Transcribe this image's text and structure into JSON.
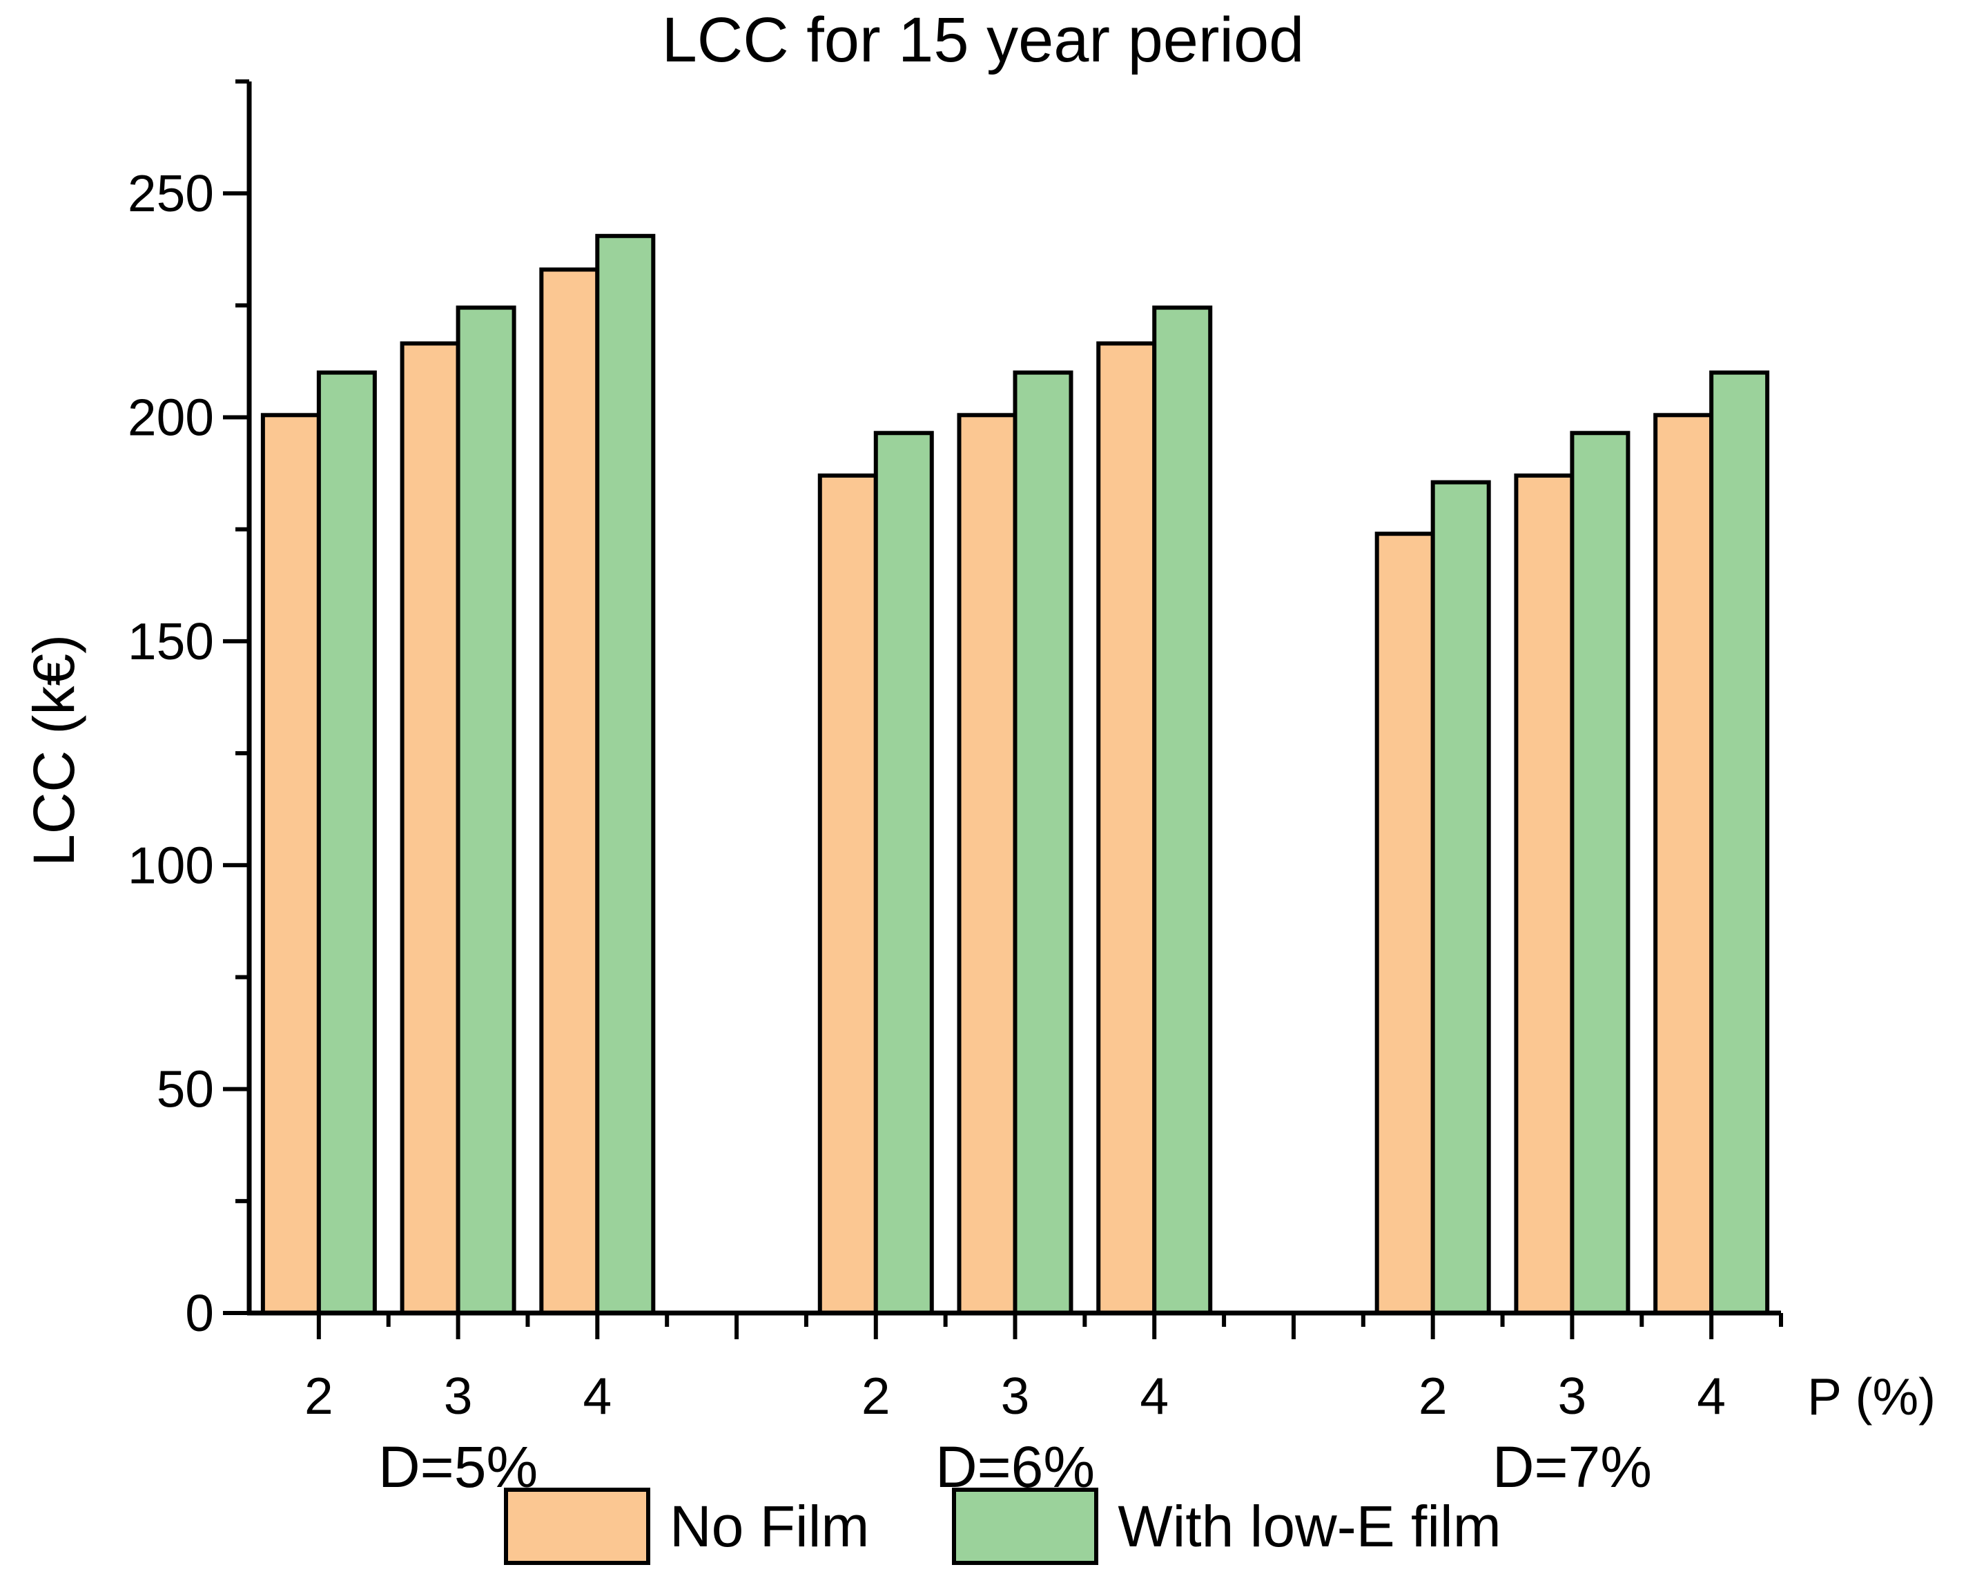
{
  "chart_data": {
    "type": "bar",
    "title": "LCC for 15 year period",
    "ylabel": "LCC (k€)",
    "xlabel": "P (%)",
    "ylim": [
      0,
      275
    ],
    "y_major_ticks": [
      0,
      50,
      100,
      150,
      200,
      250
    ],
    "y_minor_step": 25,
    "grid": "off",
    "legend_position": "bottom",
    "categories_axis_note": "P values repeated per discount-rate group, one empty slot between groups",
    "groups": [
      {
        "label": "D=5%",
        "categories": [
          "2",
          "3",
          "4"
        ],
        "no_film": [
          200.5,
          216.5,
          233
        ],
        "with_low_e_film": [
          210,
          224.5,
          240.5
        ]
      },
      {
        "label": "D=6%",
        "categories": [
          "2",
          "3",
          "4"
        ],
        "no_film": [
          187,
          200.5,
          216.5
        ],
        "with_low_e_film": [
          196.5,
          210,
          224.5
        ]
      },
      {
        "label": "D=7%",
        "categories": [
          "2",
          "3",
          "4"
        ],
        "no_film": [
          174,
          187,
          200.5
        ],
        "with_low_e_film": [
          185.5,
          196.5,
          210
        ]
      }
    ],
    "series": [
      {
        "name": "No Film",
        "key": "no_film",
        "color": "#FBC792"
      },
      {
        "name": "With low-E film",
        "key": "with_low_e_film",
        "color": "#9BD29B"
      }
    ],
    "colors": {
      "bar_border": "#000000",
      "axis": "#000000",
      "text": "#000000",
      "background": "#FFFFFF"
    }
  }
}
